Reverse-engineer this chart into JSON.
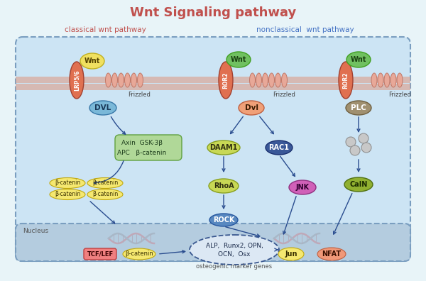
{
  "title": "Wnt Signaling pathway",
  "title_color": "#c0504d",
  "bg_color": "#e8f4f8",
  "cell_bg": "#d0e8f4",
  "nucleus_bg": "#b8cfe4",
  "membrane_color": "#e8b0a0",
  "border_color": "#7a9ec0",
  "classical_label": "classical wnt pathway",
  "nonclassical_label": "nonclassical  wnt pathway",
  "classical_color": "#c0504d",
  "nonclassical_color": "#4472c4",
  "nucleus_label": "Nucleus",
  "osteogenic_label": "osteogenic marker genes",
  "arrow_color": "#2a4d8f"
}
